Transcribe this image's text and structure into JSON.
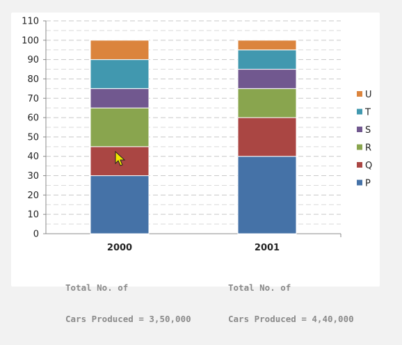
{
  "chart_data": {
    "type": "bar",
    "stacked": true,
    "categories": [
      "2000",
      "2001"
    ],
    "series": [
      {
        "name": "P",
        "color": "#4572a7",
        "values": [
          30,
          40
        ]
      },
      {
        "name": "Q",
        "color": "#aa4643",
        "values": [
          15,
          20
        ]
      },
      {
        "name": "R",
        "color": "#89a54e",
        "values": [
          20,
          15
        ]
      },
      {
        "name": "S",
        "color": "#71588f",
        "values": [
          10,
          10
        ]
      },
      {
        "name": "T",
        "color": "#4198af",
        "values": [
          15,
          10
        ]
      },
      {
        "name": "U",
        "color": "#db843d",
        "values": [
          10,
          5
        ]
      }
    ],
    "yticks": [
      "0",
      "10",
      "20",
      "30",
      "40",
      "50",
      "60",
      "70",
      "80",
      "90",
      "100",
      "110"
    ],
    "ylim": [
      0,
      110
    ],
    "legend_position": "right",
    "gridlines": "dashed"
  },
  "notes": [
    {
      "line1": "Total No. of",
      "line2": "Cars Produced = 3,50,000"
    },
    {
      "line1": "Total No. of",
      "line2": "Cars Produced = 4,40,000"
    }
  ]
}
